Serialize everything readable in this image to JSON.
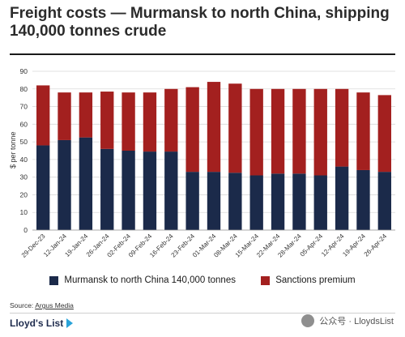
{
  "title": "Freight costs — Murmansk to north China, shipping 140,000 tonnes crude",
  "source_label": "Source: ",
  "source_name": "Argus Media",
  "brand": "Lloyd's List",
  "watermark": "公众号 · LloydsList",
  "colors": {
    "murmansk": "#1b2a4a",
    "sanctions": "#a3201f",
    "grid": "#d9d9d9"
  },
  "chart_data": {
    "type": "bar",
    "stacked": true,
    "ylabel": "$ per tonne",
    "ylim": [
      0,
      90
    ],
    "yticks": [
      0,
      10,
      20,
      30,
      40,
      50,
      60,
      70,
      80,
      90
    ],
    "grid": "horizontal",
    "legend": "bottom",
    "categories": [
      "29-Dec-23",
      "12-Jan-24",
      "19-Jan-24",
      "26-Jan-24",
      "02-Feb-24",
      "09-Feb-24",
      "16-Feb-24",
      "23-Feb-24",
      "01-Mar-24",
      "08-Mar-24",
      "15-Mar-24",
      "22-Mar-24",
      "28-Mar-24",
      "05-Apr-24",
      "12-Apr-24",
      "19-Apr-24",
      "26-Apr-24"
    ],
    "series": [
      {
        "name": "Murmansk to north China 140,000 tonnes",
        "values": [
          48,
          51,
          52.5,
          46,
          45,
          44.5,
          44.5,
          33,
          33,
          32.5,
          31,
          32,
          32,
          31,
          36,
          34,
          33
        ]
      },
      {
        "name": "Sanctions premium",
        "values": [
          34,
          27,
          25.5,
          32.5,
          33,
          33.5,
          35.5,
          48,
          51,
          50.5,
          49,
          48,
          48,
          49,
          44,
          44,
          43.5
        ]
      }
    ]
  }
}
